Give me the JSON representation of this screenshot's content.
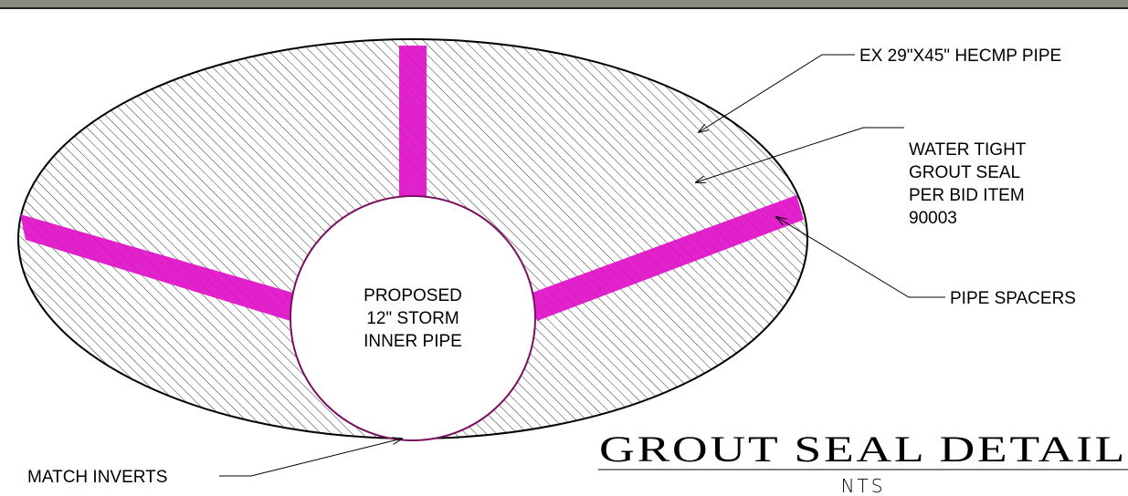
{
  "labels": {
    "outer_pipe": "EX 29\"X45\" HECMP PIPE",
    "grout_seal": [
      "WATER TIGHT",
      "GROUT SEAL",
      "PER BID ITEM",
      "90003"
    ],
    "spacers": "PIPE SPACERS",
    "inner_pipe": [
      "PROPOSED",
      "12\" STORM",
      "INNER PIPE"
    ],
    "invert": "MATCH INVERTS"
  },
  "title": "GROUT SEAL DETAIL",
  "scale": "NTS"
}
